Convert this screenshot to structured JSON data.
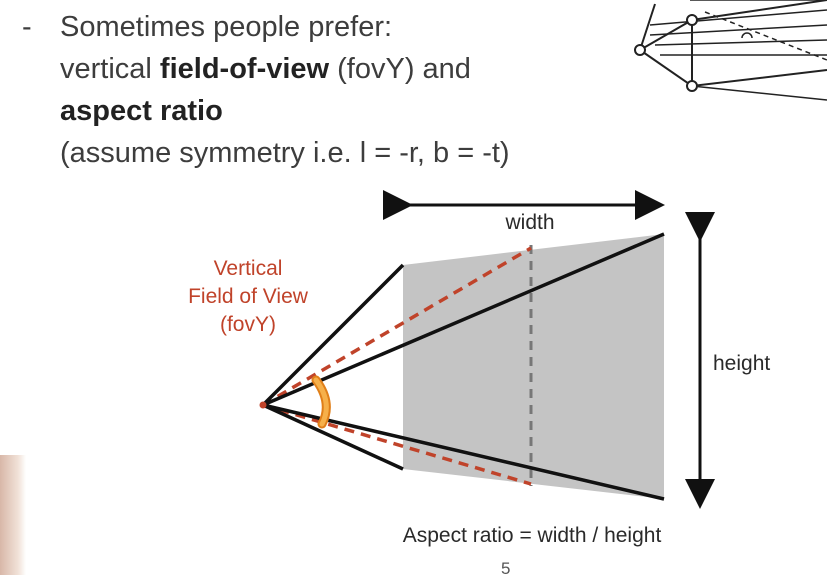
{
  "slide": {
    "dash": "-",
    "line1": "Sometimes people prefer:",
    "line2_pre": "vertical ",
    "line2_bold": "field-of-view",
    "line2_post": " (fovY) and",
    "line3_bold": "aspect ratio",
    "line4": "(assume symmetry i.e. l = -r, b = -t)",
    "page_number": "5"
  },
  "diagram": {
    "width_label": "width",
    "height_label": "height",
    "fov_label_line1": "Vertical",
    "fov_label_line2": "Field of View",
    "fov_label_line3": "(fovY)",
    "caption": "Aspect ratio = width / height",
    "colors": {
      "frustum_fill": "#c4c4c4",
      "fov_accent": "#c0432a",
      "angle_arc": "#f2a035",
      "line": "#111111"
    }
  }
}
